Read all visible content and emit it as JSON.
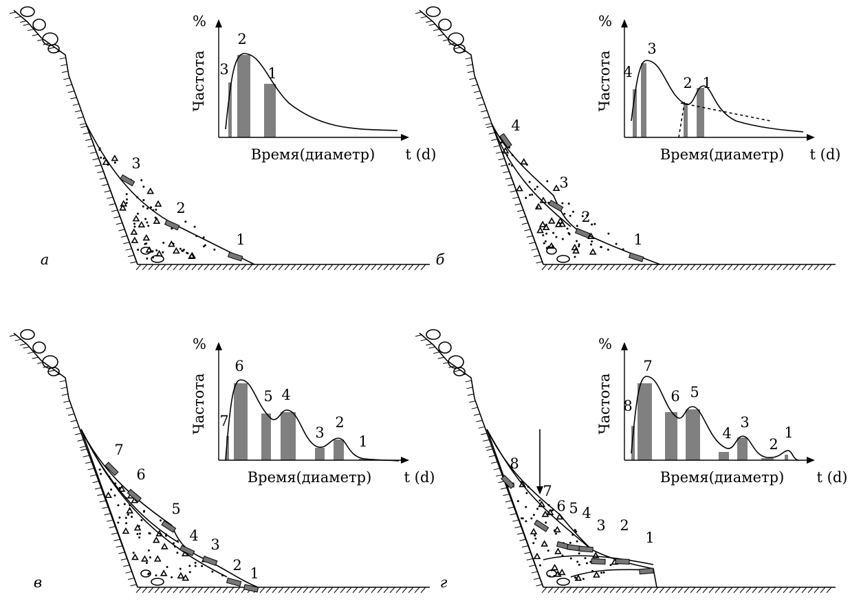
{
  "panels": [
    {
      "letter": "а",
      "y_unit": "%",
      "y_label": "Частота",
      "x_label": "Время(диаметр)",
      "x_unit": "t (d)",
      "curve_labels": [
        "3",
        "2",
        "1"
      ],
      "slope_labels": [
        "3",
        "2",
        "1"
      ]
    },
    {
      "letter": "б",
      "y_unit": "%",
      "y_label": "Частота",
      "x_label": "Время(диаметр)",
      "x_unit": "t (d)",
      "curve_labels": [
        "4",
        "3",
        "2",
        "1"
      ],
      "slope_labels": [
        "4",
        "3",
        "2",
        "1"
      ]
    },
    {
      "letter": "в",
      "y_unit": "%",
      "y_label": "Частота",
      "x_label": "Время(диаметр)",
      "x_unit": "t (d)",
      "curve_labels": [
        "7",
        "6",
        "5",
        "4",
        "3",
        "2",
        "1"
      ],
      "slope_labels": [
        "7",
        "6",
        "5",
        "4",
        "3",
        "2",
        "1"
      ]
    },
    {
      "letter": "г",
      "y_unit": "%",
      "y_label": "Частота",
      "x_label": "Время(диаметр)",
      "x_unit": "t (d)",
      "curve_labels": [
        "8",
        "7",
        "6",
        "5",
        "4",
        "3",
        "2",
        "1"
      ],
      "slope_labels": [
        "8",
        "7",
        "6",
        "5",
        "4",
        "3",
        "2",
        "1"
      ]
    }
  ]
}
